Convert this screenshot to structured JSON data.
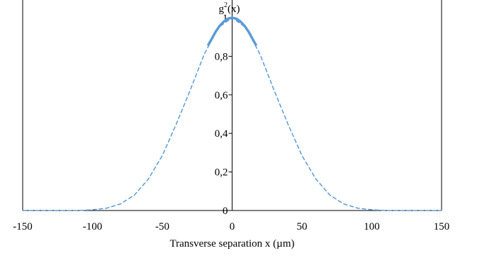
{
  "chart_data": {
    "type": "line",
    "title": "",
    "xlabel": "Transverse separation x (µm)",
    "ylabel_base": "g",
    "ylabel_sup": "2",
    "ylabel_rest": "(x)",
    "xlim": [
      -150,
      150
    ],
    "ylim": [
      0,
      1
    ],
    "x_ticks": [
      -150,
      -100,
      -50,
      0,
      50,
      100,
      150
    ],
    "x_tick_labels": [
      "-150",
      "-100",
      "-50",
      "0",
      "50",
      "100",
      "150"
    ],
    "y_ticks": [
      0,
      0.2,
      0.4,
      0.6,
      0.8,
      1
    ],
    "y_tick_labels": [
      "0",
      "0,2",
      "0,4",
      "0,6",
      "0,8",
      "1"
    ],
    "grid": false,
    "series": [
      {
        "style": "dashed",
        "color": "#5b9bd5",
        "x": [
          -150,
          -140,
          -130,
          -120,
          -110,
          -100,
          -90,
          -80,
          -70,
          -60,
          -50,
          -40,
          -30,
          -20,
          -10,
          0,
          10,
          20,
          30,
          40,
          50,
          60,
          70,
          80,
          90,
          100,
          110,
          120,
          130,
          140,
          150
        ],
        "y": [
          0,
          0,
          0,
          0,
          0,
          0.004,
          0.012,
          0.034,
          0.08,
          0.163,
          0.285,
          0.448,
          0.625,
          0.81,
          0.948,
          1,
          0.948,
          0.81,
          0.625,
          0.448,
          0.285,
          0.163,
          0.08,
          0.034,
          0.012,
          0.004,
          0,
          0,
          0,
          0,
          0
        ]
      },
      {
        "style": "solid",
        "color": "#5b9bd5",
        "x": [
          -17,
          -15,
          -12,
          -9,
          -6,
          -3,
          0,
          3,
          6,
          9,
          12,
          15,
          17
        ],
        "y": [
          0.86,
          0.885,
          0.925,
          0.957,
          0.98,
          0.995,
          1,
          0.995,
          0.98,
          0.957,
          0.925,
          0.885,
          0.86
        ]
      }
    ]
  }
}
